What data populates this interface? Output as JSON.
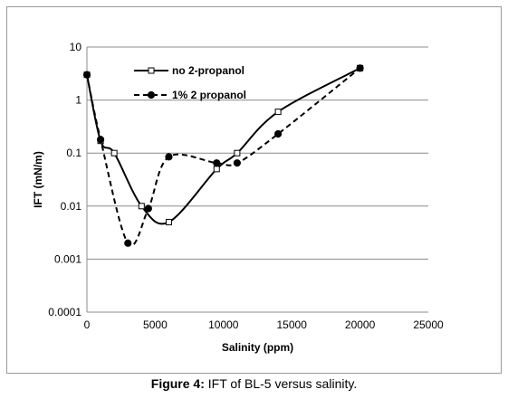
{
  "chart_data": {
    "type": "line",
    "xlabel": "Salinity (ppm)",
    "ylabel": "IFT (mN/m)",
    "xlim": [
      0,
      25000
    ],
    "ylim": [
      0.0001,
      10
    ],
    "y_scale": "log",
    "x_ticks": [
      "0",
      "5000",
      "10000",
      "15000",
      "20000",
      "25000"
    ],
    "x_tick_values": [
      0,
      5000,
      10000,
      15000,
      20000,
      25000
    ],
    "y_ticks": [
      "0.0001",
      "0.001",
      "0.01",
      "0.1",
      "1",
      "10"
    ],
    "y_tick_values": [
      0.0001,
      0.001,
      0.01,
      0.1,
      1,
      10
    ],
    "grid": "horizontal",
    "legend_position": "top-left",
    "series": [
      {
        "name": "no 2-propanol",
        "marker": "open-square",
        "line": "solid",
        "color": "#000000",
        "x": [
          0,
          1000,
          2000,
          4000,
          6000,
          9500,
          11000,
          14000,
          20000
        ],
        "y": [
          3,
          0.17,
          0.1,
          0.01,
          0.005,
          0.05,
          0.1,
          0.6,
          4
        ]
      },
      {
        "name": "1% 2 propanol",
        "marker": "filled-circle",
        "line": "dashed",
        "color": "#000000",
        "x": [
          0,
          1000,
          3000,
          4500,
          6000,
          9500,
          11000,
          14000,
          20000
        ],
        "y": [
          3,
          0.18,
          0.002,
          0.009,
          0.085,
          0.065,
          0.065,
          0.23,
          4
        ]
      }
    ]
  },
  "caption": {
    "label": "Figure 4:",
    "text": " IFT of BL-5 versus salinity."
  }
}
